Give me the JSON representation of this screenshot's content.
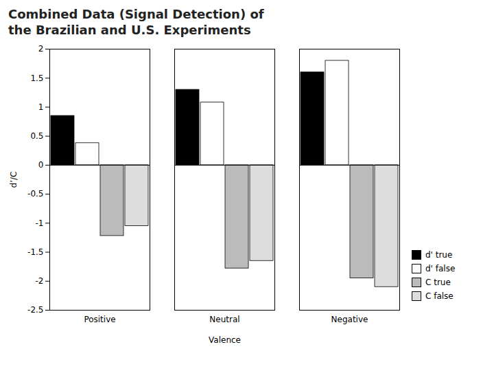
{
  "chart_data": {
    "type": "bar",
    "title": "Combined Data (Signal Detection) of\nthe Brazilian and U.S. Experiments",
    "xlabel": "Valence",
    "ylabel": "d’/C",
    "categories": [
      "Positive",
      "Neutral",
      "Negative"
    ],
    "series": [
      {
        "name": "d' true",
        "color": "#000000",
        "values": [
          0.85,
          1.3,
          1.6
        ]
      },
      {
        "name": "d' false",
        "color": "#FFFFFF",
        "values": [
          0.38,
          1.08,
          1.8
        ]
      },
      {
        "name": "C true",
        "color": "#BBBBBB",
        "values": [
          -1.22,
          -1.78,
          -1.95
        ]
      },
      {
        "name": "C false",
        "color": "#DDDDDD",
        "values": [
          -1.05,
          -1.65,
          -2.1
        ]
      }
    ],
    "ylim": [
      -2.5,
      2.0
    ],
    "yticks": [
      -2.5,
      -2.0,
      -1.5,
      -1.0,
      -0.5,
      0.0,
      0.5,
      1.0,
      1.5,
      2.0
    ],
    "legend": "lower right",
    "grid": false
  }
}
